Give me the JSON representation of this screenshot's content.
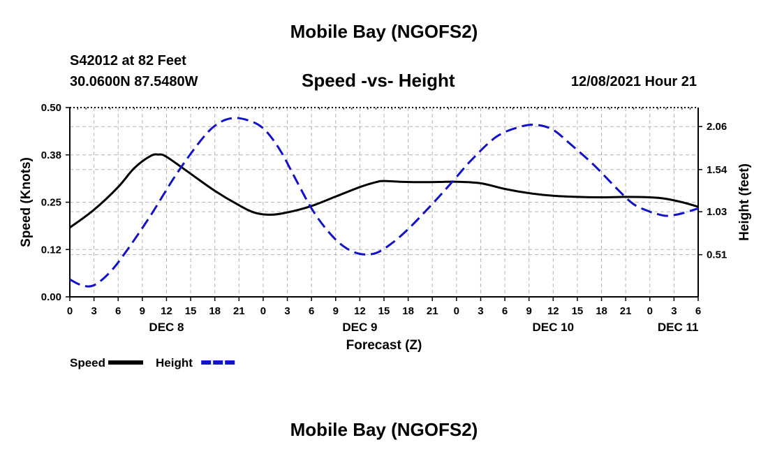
{
  "header": {
    "title": "Mobile Bay (NGOFS2)",
    "station": "S42012 at 82 Feet",
    "coords": "30.0600N  87.5480W",
    "subtitle": "Speed -vs- Height",
    "timestamp": "12/08/2021 Hour 21",
    "repeat_title": "Mobile Bay (NGOFS2)"
  },
  "chart_data": {
    "type": "line",
    "title": "Speed -vs- Height",
    "xlabel": "Forecast (Z)",
    "ylabel_left": "Speed (Knots)",
    "ylabel_right": "Height (feet)",
    "x_unit": "hours from Dec 8 00Z",
    "xlim": [
      0,
      78
    ],
    "ylim_left": [
      0,
      0.5
    ],
    "ylim_right": [
      0,
      2.29
    ],
    "left_ticks": [
      "0.00",
      "0.12",
      "0.25",
      "0.38",
      "0.50"
    ],
    "left_tick_values": [
      0,
      0.125,
      0.25,
      0.375,
      0.5
    ],
    "right_ticks": [
      "0.51",
      "1.03",
      "1.54",
      "2.06"
    ],
    "right_tick_values": [
      0.51,
      1.03,
      1.54,
      2.06
    ],
    "x_tick_labels": [
      "0",
      "3",
      "6",
      "9",
      "12",
      "15",
      "18",
      "21",
      "0",
      "3",
      "6",
      "9",
      "12",
      "15",
      "18",
      "21",
      "0",
      "3",
      "6",
      "9",
      "12",
      "15",
      "18",
      "21",
      "0",
      "3",
      "6"
    ],
    "day_labels": [
      {
        "label": "DEC 8",
        "hour": 12
      },
      {
        "label": "DEC 9",
        "hour": 36
      },
      {
        "label": "DEC 10",
        "hour": 60
      },
      {
        "label": "DEC 11",
        "hour": 75.5
      }
    ],
    "grid": true,
    "series": [
      {
        "name": "Speed",
        "axis": "left",
        "color": "#000000",
        "dash": "solid",
        "points": [
          [
            0,
            0.183
          ],
          [
            3,
            0.23
          ],
          [
            6,
            0.29
          ],
          [
            8,
            0.34
          ],
          [
            10,
            0.372
          ],
          [
            11,
            0.376
          ],
          [
            12,
            0.37
          ],
          [
            15,
            0.325
          ],
          [
            18,
            0.28
          ],
          [
            21,
            0.242
          ],
          [
            23,
            0.222
          ],
          [
            25,
            0.217
          ],
          [
            27,
            0.223
          ],
          [
            30,
            0.24
          ],
          [
            33,
            0.265
          ],
          [
            36,
            0.29
          ],
          [
            38,
            0.303
          ],
          [
            39,
            0.306
          ],
          [
            41,
            0.304
          ],
          [
            44,
            0.303
          ],
          [
            48,
            0.304
          ],
          [
            51,
            0.3
          ],
          [
            54,
            0.285
          ],
          [
            57,
            0.274
          ],
          [
            60,
            0.267
          ],
          [
            63,
            0.264
          ],
          [
            66,
            0.263
          ],
          [
            69,
            0.264
          ],
          [
            72,
            0.263
          ],
          [
            74,
            0.259
          ],
          [
            76,
            0.25
          ],
          [
            78,
            0.238
          ]
        ]
      },
      {
        "name": "Height",
        "axis": "right",
        "color": "#1212c8",
        "dash": "dashed",
        "points": [
          [
            0,
            0.21
          ],
          [
            1.5,
            0.14
          ],
          [
            3,
            0.14
          ],
          [
            5,
            0.3
          ],
          [
            7,
            0.55
          ],
          [
            10,
            0.98
          ],
          [
            13,
            1.45
          ],
          [
            16,
            1.86
          ],
          [
            18,
            2.07
          ],
          [
            20,
            2.16
          ],
          [
            22,
            2.14
          ],
          [
            24,
            2.04
          ],
          [
            26,
            1.79
          ],
          [
            28,
            1.43
          ],
          [
            30,
            1.07
          ],
          [
            32,
            0.8
          ],
          [
            34,
            0.61
          ],
          [
            36,
            0.52
          ],
          [
            38,
            0.53
          ],
          [
            40,
            0.65
          ],
          [
            42,
            0.82
          ],
          [
            44,
            1.02
          ],
          [
            46,
            1.23
          ],
          [
            48,
            1.45
          ],
          [
            50,
            1.67
          ],
          [
            53,
            1.94
          ],
          [
            56,
            2.06
          ],
          [
            58,
            2.08
          ],
          [
            60,
            2.02
          ],
          [
            62,
            1.86
          ],
          [
            65,
            1.6
          ],
          [
            68,
            1.3
          ],
          [
            70,
            1.12
          ],
          [
            72,
            1.03
          ],
          [
            73,
            1.0
          ],
          [
            74,
            0.98
          ],
          [
            75,
            0.99
          ],
          [
            76,
            1.01
          ],
          [
            78,
            1.07
          ]
        ]
      }
    ],
    "legend": [
      {
        "label": "Speed",
        "color": "#000000",
        "dash": "solid"
      },
      {
        "label": "Height",
        "color": "#1212c8",
        "dash": "dashed"
      }
    ],
    "legend_position": "bottom-left"
  }
}
